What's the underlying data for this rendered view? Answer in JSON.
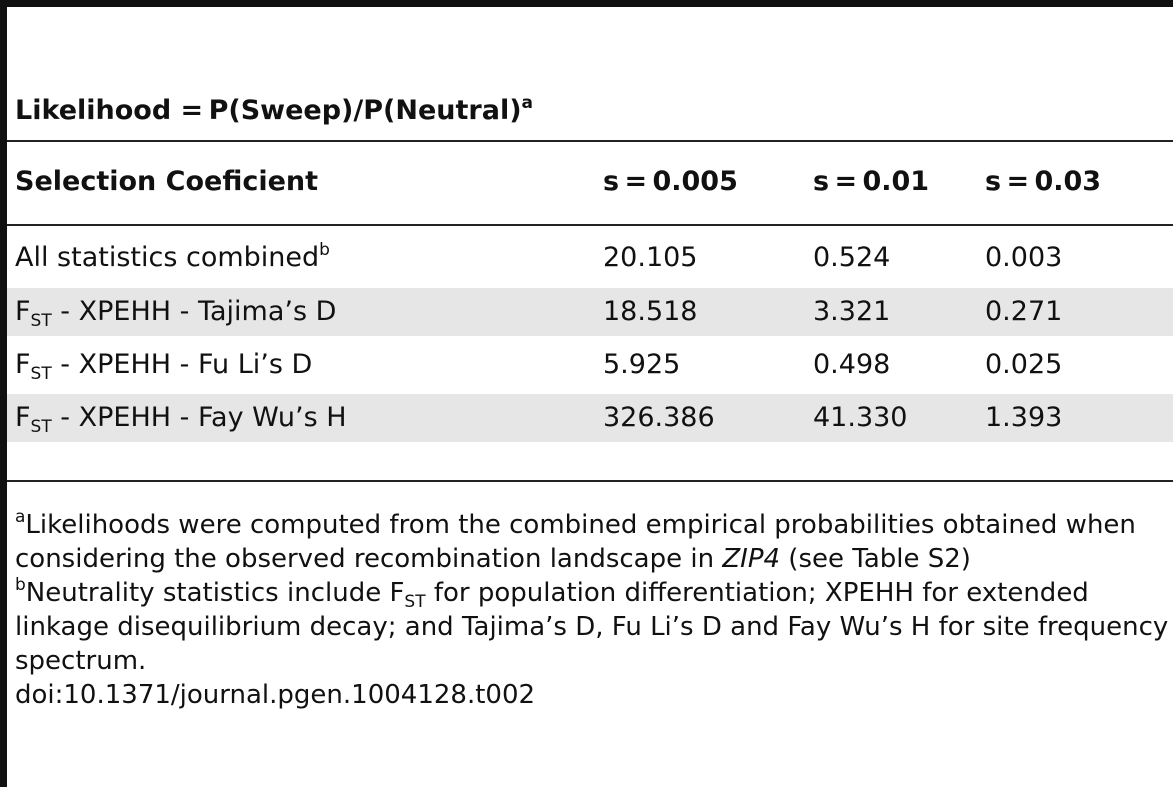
{
  "table": {
    "title": {
      "text": "Likelihood  = P(Sweep)/P(Neutral)",
      "sup": "a"
    },
    "header": [
      "Selection Coeficient",
      "s = 0.005",
      "s = 0.01",
      "s = 0.03"
    ],
    "rows": [
      {
        "label_pre": "All statistics combined",
        "label_sup": "b",
        "values": [
          "20.105",
          "0.524",
          "0.003"
        ]
      },
      {
        "label_pre": "F",
        "label_sub": "ST",
        "label_post": " - XPEHH - Tajima’s D",
        "values": [
          "18.518",
          "3.321",
          "0.271"
        ]
      },
      {
        "label_pre": "F",
        "label_sub": "ST",
        "label_post": " - XPEHH - Fu Li’s D",
        "values": [
          "5.925",
          "0.498",
          "0.025"
        ]
      },
      {
        "label_pre": "F",
        "label_sub": "ST",
        "label_post": " - XPEHH - Fay Wu’s H",
        "values": [
          "326.386",
          "41.330",
          "1.393"
        ]
      }
    ]
  },
  "footnotes": {
    "a": {
      "marker": "a",
      "text_pre": "Likelihoods were computed from the combined empirical probabilities obtained when considering the observed recombination landscape in ",
      "text_italic": "ZIP4",
      "text_post": " (see Table S2)"
    },
    "b": {
      "marker": "b",
      "text_pre": "Neutrality statistics include F",
      "text_sub": "ST",
      "text_post": " for population differentiation; XPEHH for extended linkage disequilibrium decay; and Tajima’s D, Fu Li’s D and Fay Wu’s H for site frequency spectrum."
    },
    "doi": "doi:10.1371/journal.pgen.1004128.t002"
  }
}
